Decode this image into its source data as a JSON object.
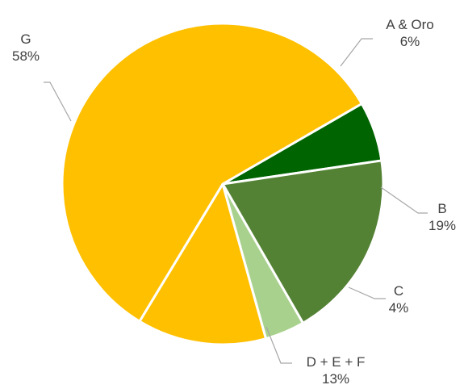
{
  "chart_data": {
    "type": "pie",
    "slices": [
      {
        "label": "A & Oro",
        "value": 6,
        "value_label": "6%",
        "color": "#006400"
      },
      {
        "label": "B",
        "value": 19,
        "value_label": "19%",
        "color": "#548235"
      },
      {
        "label": "C",
        "value": 4,
        "value_label": "4%",
        "color": "#a9d18e"
      },
      {
        "label": "D + E + F",
        "value": 13,
        "value_label": "13%",
        "color": "#ffc000"
      },
      {
        "label": "G",
        "value": 58,
        "value_label": "58%",
        "color": "#ffc000"
      }
    ],
    "start_angle_deg": 60,
    "direction": "clockwise",
    "legend": "none",
    "data_labels": "outside-with-leader-lines"
  }
}
